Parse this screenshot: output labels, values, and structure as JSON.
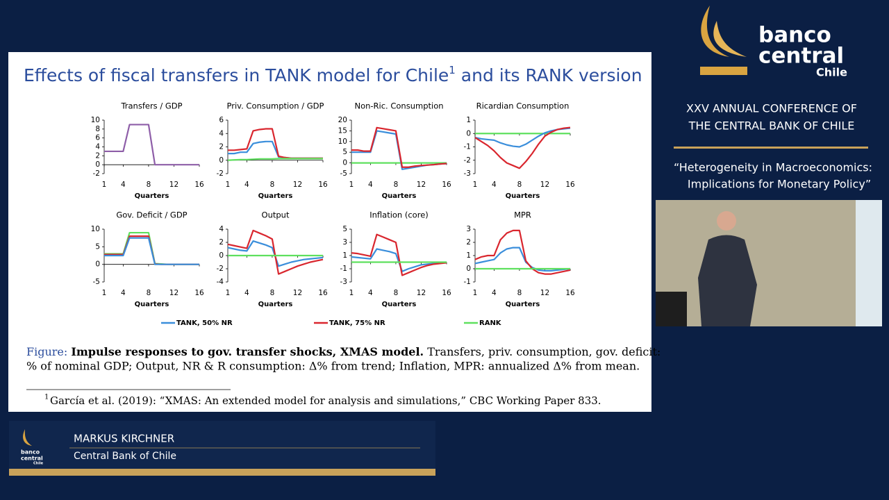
{
  "slide": {
    "title_main": "Effects of fiscal transfers in TANK model for Chile",
    "title_sup": "1",
    "title_end": " and its RANK version",
    "legend": [
      {
        "name": "TANK, 50% NR",
        "color": "#3a8edb"
      },
      {
        "name": "TANK, 75% NR",
        "color": "#d9262e"
      },
      {
        "name": "RANK",
        "color": "#5ee05e"
      }
    ],
    "caption_label": "Figure:",
    "caption_bold": "Impulse responses to gov. transfer shocks, XMAS model.",
    "caption_rest": "Transfers, priv. consumption, gov. deficit:",
    "caption_line2": "% of nominal GDP; Output, NR & R consumption: Δ% from trend; Inflation, MPR: annualized Δ% from mean.",
    "footnote_mark": "1",
    "footnote": "García et al. (2019): “XMAS: An extended model for analysis and simulations,” CBC Working Paper 833."
  },
  "branding": {
    "word1": "banco",
    "word2": "central",
    "word3": "Chile"
  },
  "conference": {
    "line1": "XXV ANNUAL CONFERENCE OF",
    "line2": "THE CENTRAL BANK OF CHILE"
  },
  "theme": {
    "line1": "“Heterogeneity in Macroeconomics:",
    "line2": "Implications for Monetary Policy”"
  },
  "speaker": {
    "name": "MARKUS KIRCHNER",
    "affiliation": "Central Bank of Chile"
  },
  "chart_data": [
    {
      "type": "line",
      "title": "Transfers / GDP",
      "x_label": "Quarters",
      "x": [
        1,
        2,
        3,
        4,
        5,
        6,
        7,
        8,
        9,
        10,
        11,
        12,
        13,
        14,
        15,
        16
      ],
      "xlim": [
        1,
        16
      ],
      "xticks": [
        1,
        4,
        8,
        12,
        16
      ],
      "ylim": [
        -2,
        10
      ],
      "yticks": [
        -2,
        0,
        2,
        4,
        6,
        8,
        10
      ],
      "series": [
        {
          "color": "#8e5ea8",
          "values": [
            3,
            3,
            3,
            3,
            9,
            9,
            9,
            9,
            0,
            0,
            0,
            0,
            0,
            0,
            0,
            0
          ]
        }
      ]
    },
    {
      "type": "line",
      "title": "Priv. Consumption / GDP",
      "x_label": "Quarters",
      "x": [
        1,
        2,
        3,
        4,
        5,
        6,
        7,
        8,
        9,
        10,
        11,
        12,
        13,
        14,
        15,
        16
      ],
      "xlim": [
        1,
        16
      ],
      "xticks": [
        1,
        4,
        8,
        12,
        16
      ],
      "ylim": [
        -2,
        6
      ],
      "yticks": [
        -2,
        0,
        2,
        4,
        6
      ],
      "series": [
        {
          "color": "#3a8edb",
          "values": [
            1,
            1,
            1.2,
            1.2,
            2.5,
            2.7,
            2.8,
            2.8,
            0.5,
            0.4,
            0.3,
            0.3,
            0.3,
            0.3,
            0.3,
            0.3
          ]
        },
        {
          "color": "#d9262e",
          "values": [
            1.5,
            1.5,
            1.6,
            1.7,
            4.4,
            4.6,
            4.7,
            4.7,
            0.6,
            0.4,
            0.3,
            0.3,
            0.3,
            0.3,
            0.3,
            0.3
          ]
        },
        {
          "color": "#5ee05e",
          "values": [
            0,
            0.05,
            0.1,
            0.1,
            0.15,
            0.2,
            0.2,
            0.2,
            0.25,
            0.25,
            0.25,
            0.25,
            0.25,
            0.25,
            0.25,
            0.25
          ]
        }
      ]
    },
    {
      "type": "line",
      "title": "Non-Ric. Consumption",
      "x_label": "Quarters",
      "x": [
        1,
        2,
        3,
        4,
        5,
        6,
        7,
        8,
        9,
        10,
        11,
        12,
        13,
        14,
        15,
        16
      ],
      "xlim": [
        1,
        16
      ],
      "xticks": [
        1,
        4,
        8,
        12,
        16
      ],
      "ylim": [
        -5,
        20
      ],
      "yticks": [
        -5,
        0,
        5,
        10,
        15,
        20
      ],
      "series": [
        {
          "color": "#5ee05e",
          "values": [
            0,
            0,
            0,
            0,
            0,
            0,
            0,
            0,
            0,
            0,
            0,
            0,
            0,
            0,
            0,
            0
          ]
        },
        {
          "color": "#3a8edb",
          "values": [
            5,
            5,
            5,
            5,
            15,
            14.5,
            14,
            13.5,
            -3,
            -2.5,
            -2,
            -1.5,
            -1,
            -0.8,
            -0.5,
            -0.3
          ]
        },
        {
          "color": "#d9262e",
          "values": [
            6,
            6,
            5.5,
            5.5,
            16.5,
            16,
            15.5,
            15,
            -2,
            -2,
            -1.5,
            -1.2,
            -1,
            -0.8,
            -0.5,
            -0.3
          ]
        }
      ]
    },
    {
      "type": "line",
      "title": "Ricardian Consumption",
      "x_label": "Quarters",
      "x": [
        1,
        2,
        3,
        4,
        5,
        6,
        7,
        8,
        9,
        10,
        11,
        12,
        13,
        14,
        15,
        16
      ],
      "xlim": [
        1,
        16
      ],
      "xticks": [
        1,
        4,
        8,
        12,
        16
      ],
      "ylim": [
        -3,
        1
      ],
      "yticks": [
        -3,
        -2,
        -1,
        0,
        1
      ],
      "series": [
        {
          "color": "#5ee05e",
          "values": [
            0,
            0,
            0,
            0,
            0,
            0,
            0,
            0,
            0,
            0,
            0,
            0,
            0,
            0,
            0,
            0
          ]
        },
        {
          "color": "#3a8edb",
          "values": [
            -0.3,
            -0.4,
            -0.45,
            -0.5,
            -0.7,
            -0.85,
            -0.95,
            -1,
            -0.8,
            -0.5,
            -0.2,
            0.05,
            0.2,
            0.3,
            0.35,
            0.4
          ]
        },
        {
          "color": "#d9262e",
          "values": [
            -0.3,
            -0.6,
            -0.9,
            -1.3,
            -1.8,
            -2.2,
            -2.4,
            -2.6,
            -2.1,
            -1.5,
            -0.8,
            -0.2,
            0.1,
            0.3,
            0.4,
            0.45
          ]
        }
      ]
    },
    {
      "type": "line",
      "title": "Gov. Deficit / GDP",
      "x_label": "Quarters",
      "x": [
        1,
        2,
        3,
        4,
        5,
        6,
        7,
        8,
        9,
        10,
        11,
        12,
        13,
        14,
        15,
        16
      ],
      "xlim": [
        1,
        16
      ],
      "xticks": [
        1,
        4,
        8,
        12,
        16
      ],
      "ylim": [
        -5,
        10
      ],
      "yticks": [
        -5,
        0,
        5,
        10
      ],
      "series": [
        {
          "color": "#5ee05e",
          "values": [
            3,
            3,
            3,
            3,
            9,
            9,
            9,
            9,
            0.2,
            0.1,
            0,
            0,
            0,
            0,
            0,
            0
          ]
        },
        {
          "color": "#d9262e",
          "values": [
            2.8,
            2.8,
            2.8,
            2.8,
            8,
            8,
            8,
            8,
            0.1,
            0,
            0,
            0,
            0,
            0,
            0,
            0
          ]
        },
        {
          "color": "#3a8edb",
          "values": [
            2.5,
            2.5,
            2.5,
            2.5,
            7.5,
            7.5,
            7.5,
            7.5,
            0,
            0,
            0,
            0,
            0,
            0,
            0,
            0
          ]
        }
      ]
    },
    {
      "type": "line",
      "title": "Output",
      "x_label": "Quarters",
      "x": [
        1,
        2,
        3,
        4,
        5,
        6,
        7,
        8,
        9,
        10,
        11,
        12,
        13,
        14,
        15,
        16
      ],
      "xlim": [
        1,
        16
      ],
      "xticks": [
        1,
        4,
        8,
        12,
        16
      ],
      "ylim": [
        -4,
        4
      ],
      "yticks": [
        -4,
        -2,
        0,
        2,
        4
      ],
      "series": [
        {
          "color": "#3a8edb",
          "values": [
            1.2,
            1,
            0.8,
            0.7,
            2.2,
            1.9,
            1.6,
            1.2,
            -1.6,
            -1.3,
            -1,
            -0.8,
            -0.6,
            -0.5,
            -0.4,
            -0.3
          ]
        },
        {
          "color": "#d9262e",
          "values": [
            1.7,
            1.5,
            1.3,
            1.1,
            3.8,
            3.4,
            3,
            2.5,
            -2.8,
            -2.4,
            -2,
            -1.6,
            -1.3,
            -1,
            -0.8,
            -0.6
          ]
        },
        {
          "color": "#5ee05e",
          "values": [
            0,
            0,
            0,
            0,
            0,
            0,
            0,
            0,
            0,
            0,
            0,
            0,
            0,
            0,
            0,
            0
          ]
        }
      ]
    },
    {
      "type": "line",
      "title": "Inflation (core)",
      "x_label": "Quarters",
      "x": [
        1,
        2,
        3,
        4,
        5,
        6,
        7,
        8,
        9,
        10,
        11,
        12,
        13,
        14,
        15,
        16
      ],
      "xlim": [
        1,
        16
      ],
      "xticks": [
        1,
        4,
        8,
        12,
        16
      ],
      "ylim": [
        -3,
        5
      ],
      "yticks": [
        -3,
        -1,
        1,
        3,
        5
      ],
      "series": [
        {
          "color": "#3a8edb",
          "values": [
            0.8,
            0.7,
            0.6,
            0.5,
            2,
            1.8,
            1.6,
            1.3,
            -1.4,
            -1,
            -0.7,
            -0.4,
            -0.3,
            -0.2,
            -0.1,
            0
          ]
        },
        {
          "color": "#d9262e",
          "values": [
            1.4,
            1.3,
            1.1,
            0.9,
            4.2,
            3.8,
            3.4,
            3,
            -2,
            -1.6,
            -1.2,
            -0.8,
            -0.5,
            -0.3,
            -0.2,
            -0.1
          ]
        },
        {
          "color": "#5ee05e",
          "values": [
            0,
            0,
            0,
            0,
            0,
            0,
            0,
            0,
            0,
            0,
            0,
            0,
            0,
            0,
            0,
            0
          ]
        }
      ]
    },
    {
      "type": "line",
      "title": "MPR",
      "x_label": "Quarters",
      "x": [
        1,
        2,
        3,
        4,
        5,
        6,
        7,
        8,
        9,
        10,
        11,
        12,
        13,
        14,
        15,
        16
      ],
      "xlim": [
        1,
        16
      ],
      "xticks": [
        1,
        4,
        8,
        12,
        16
      ],
      "ylim": [
        -1,
        3
      ],
      "yticks": [
        -1,
        0,
        1,
        2,
        3
      ],
      "series": [
        {
          "color": "#3a8edb",
          "values": [
            0.4,
            0.5,
            0.6,
            0.7,
            1.2,
            1.5,
            1.6,
            1.6,
            0.5,
            0.1,
            -0.1,
            -0.15,
            -0.15,
            -0.1,
            -0.05,
            0
          ]
        },
        {
          "color": "#d9262e",
          "values": [
            0.7,
            0.9,
            1,
            1,
            2.2,
            2.7,
            2.9,
            2.9,
            0.6,
            0,
            -0.3,
            -0.4,
            -0.4,
            -0.3,
            -0.2,
            -0.1
          ]
        },
        {
          "color": "#5ee05e",
          "values": [
            0,
            0,
            0,
            0,
            0,
            0,
            0,
            0,
            0,
            0,
            0,
            0,
            0,
            0,
            0,
            0
          ]
        }
      ]
    }
  ]
}
